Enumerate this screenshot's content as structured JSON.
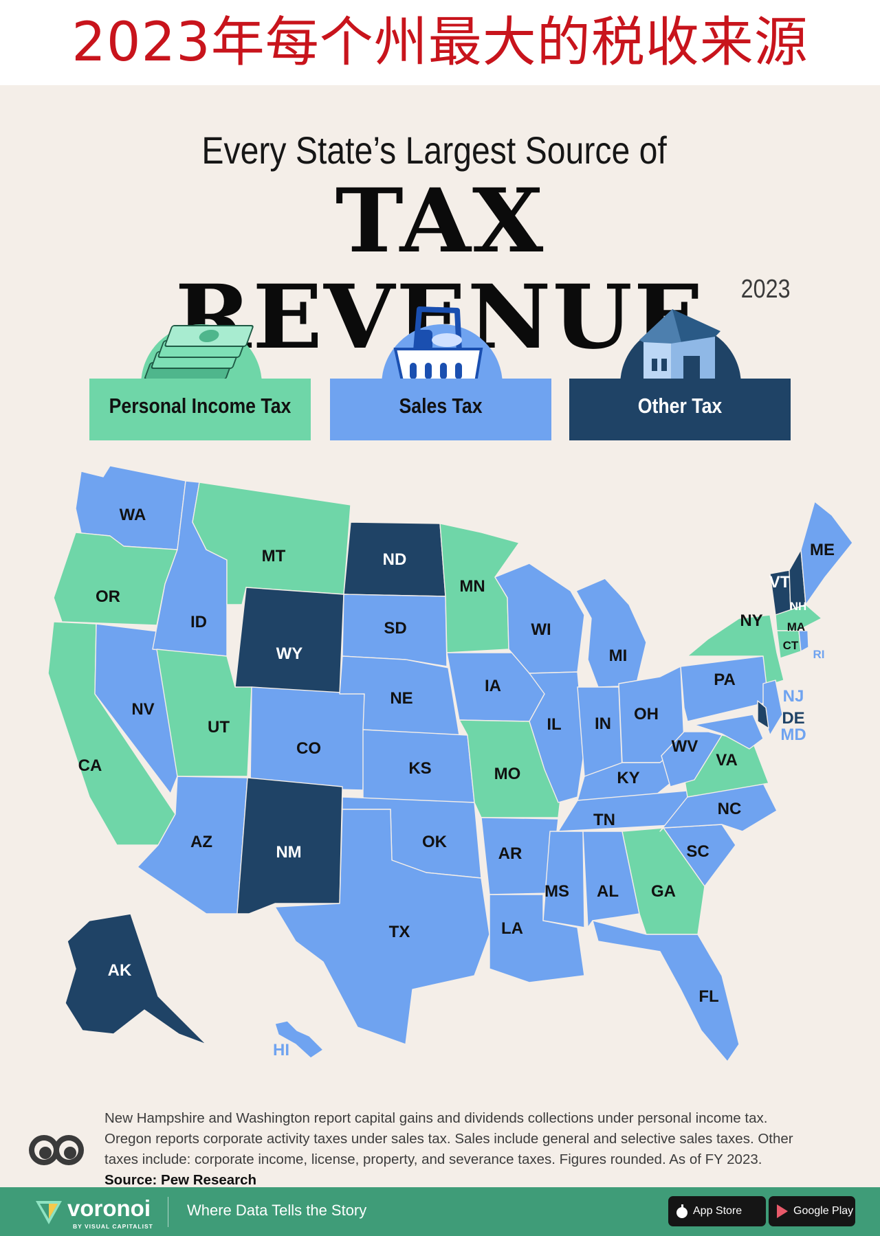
{
  "banner": {
    "text": "2023年每个州最大的税收来源"
  },
  "header": {
    "subtitle": "Every State’s Largest Source of",
    "title": "TAX REVENUE",
    "year": "2023"
  },
  "legend": {
    "income": {
      "label": "Personal Income Tax",
      "color": "#6fd6a8",
      "icon": "money-stack-icon"
    },
    "sales": {
      "label": "Sales Tax",
      "color": "#6fa3f0",
      "icon": "shopping-basket-icon"
    },
    "other": {
      "label": "Other Tax",
      "color": "#1f4366",
      "icon": "house-icon"
    }
  },
  "states": {
    "WA": "sales",
    "OR": "income",
    "CA": "income",
    "NV": "sales",
    "ID": "sales",
    "MT": "income",
    "WY": "other",
    "UT": "income",
    "CO": "sales",
    "AZ": "sales",
    "NM": "other",
    "ND": "other",
    "SD": "sales",
    "NE": "sales",
    "KS": "sales",
    "OK": "sales",
    "TX": "sales",
    "MN": "income",
    "IA": "sales",
    "MO": "income",
    "AR": "sales",
    "LA": "sales",
    "WI": "sales",
    "IL": "sales",
    "MI": "sales",
    "IN": "sales",
    "OH": "sales",
    "KY": "sales",
    "TN": "sales",
    "MS": "sales",
    "AL": "sales",
    "GA": "income",
    "FL": "sales",
    "SC": "sales",
    "NC": "sales",
    "VA": "income",
    "WV": "sales",
    "PA": "sales",
    "NY": "income",
    "VT": "other",
    "NH": "other",
    "ME": "sales",
    "MA": "income",
    "RI": "sales",
    "CT": "income",
    "NJ": "sales",
    "DE": "other",
    "MD": "sales",
    "AK": "other",
    "HI": "sales"
  },
  "footnote": {
    "text": "New Hampshire and Washington report capital gains and dividends collections under personal income tax. Oregon reports corporate activity taxes under sales tax. Sales include general and selective sales taxes. Other taxes include: corporate income, license, property, and severance taxes. Figures rounded. As of FY 2023.",
    "source": "Source: Pew Research"
  },
  "footer": {
    "brand": "voronoi",
    "brand_sub": "BY VISUAL CAPITALIST",
    "tagline": "Where Data Tells the Story",
    "app_store": "App Store",
    "google_play": "Google Play"
  }
}
